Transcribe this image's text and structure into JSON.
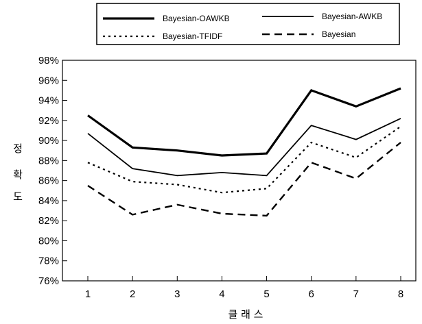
{
  "chart_data": {
    "type": "line",
    "title": "",
    "xlabel": "클 래 스",
    "ylabel": [
      "정",
      "확",
      "도"
    ],
    "categories": [
      "1",
      "2",
      "3",
      "4",
      "5",
      "6",
      "7",
      "8"
    ],
    "ylim": [
      76,
      98
    ],
    "yticks": [
      "98%",
      "96%",
      "94%",
      "92%",
      "90%",
      "88%",
      "86%",
      "84%",
      "82%",
      "80%",
      "78%",
      "76%"
    ],
    "grid": false,
    "legend_position": "top",
    "series": [
      {
        "name": "Bayesian-OAWKB",
        "style": "thick-solid",
        "values": [
          92.5,
          89.3,
          89.0,
          88.5,
          88.7,
          95.0,
          93.4,
          95.2
        ]
      },
      {
        "name": "Bayesian-AWKB",
        "style": "solid",
        "values": [
          90.7,
          87.2,
          86.5,
          86.8,
          86.5,
          91.5,
          90.1,
          92.2
        ]
      },
      {
        "name": "Bayesian-TFIDF",
        "style": "dotted",
        "values": [
          87.8,
          85.9,
          85.6,
          84.8,
          85.2,
          89.8,
          88.3,
          91.4
        ]
      },
      {
        "name": "Bayesian",
        "style": "dashed",
        "values": [
          85.5,
          82.6,
          83.6,
          82.7,
          82.5,
          87.8,
          86.2,
          89.8
        ]
      }
    ]
  }
}
